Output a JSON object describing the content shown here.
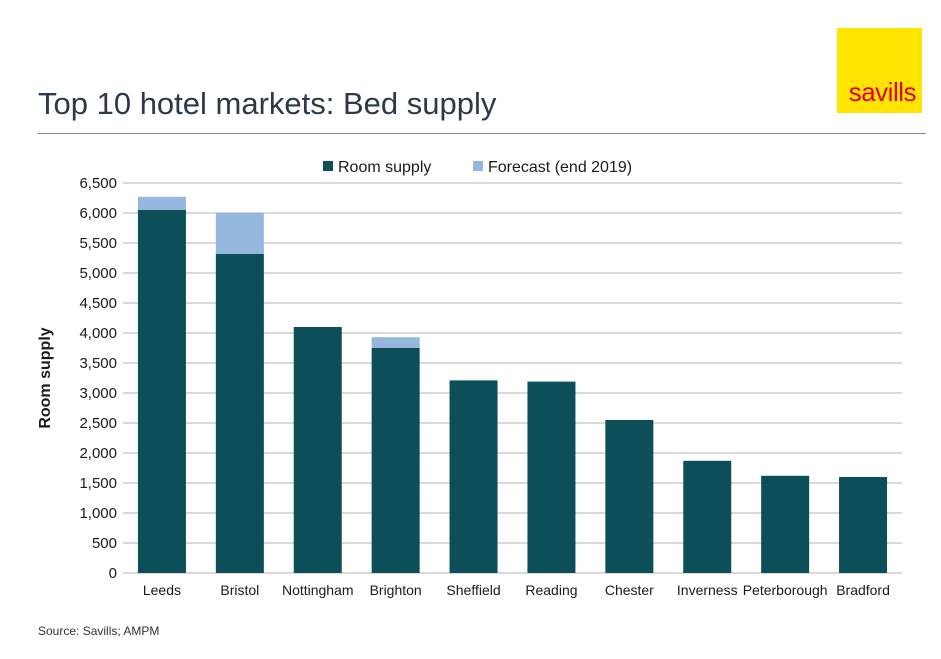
{
  "header": {
    "title": "Top 10 hotel markets: Bed supply",
    "logo_text": "savills"
  },
  "footer": {
    "source": "Source: Savills; AMPM"
  },
  "colors": {
    "room_supply": "#0c4f59",
    "forecast": "#95b7de",
    "grid": "#b3b3b3",
    "logo_bg": "#ffe500",
    "logo_text": "#e4002b"
  },
  "chart_data": {
    "type": "bar",
    "stacked": true,
    "title": "",
    "xlabel": "",
    "ylabel": "Room supply",
    "ylim": [
      0,
      6500
    ],
    "ytick_step": 500,
    "ytick_labels": [
      "0",
      "500",
      "1,000",
      "1,500",
      "2,000",
      "2,500",
      "3,000",
      "3,500",
      "4,000",
      "4,500",
      "5,000",
      "5,500",
      "6,000",
      "6,500"
    ],
    "grid": true,
    "legend_position": "top-center",
    "categories": [
      "Leeds",
      "Bristol",
      "Nottingham",
      "Brighton",
      "Sheffield",
      "Reading",
      "Chester",
      "Inverness",
      "Peterborough",
      "Bradford"
    ],
    "series": [
      {
        "name": "Room supply",
        "color": "#0c4f59",
        "values": [
          6050,
          5320,
          4100,
          3750,
          3210,
          3190,
          2550,
          1870,
          1620,
          1600
        ]
      },
      {
        "name": "Forecast (end 2019)",
        "color": "#95b7de",
        "values": [
          220,
          690,
          0,
          180,
          0,
          0,
          0,
          0,
          0,
          0
        ]
      }
    ]
  }
}
